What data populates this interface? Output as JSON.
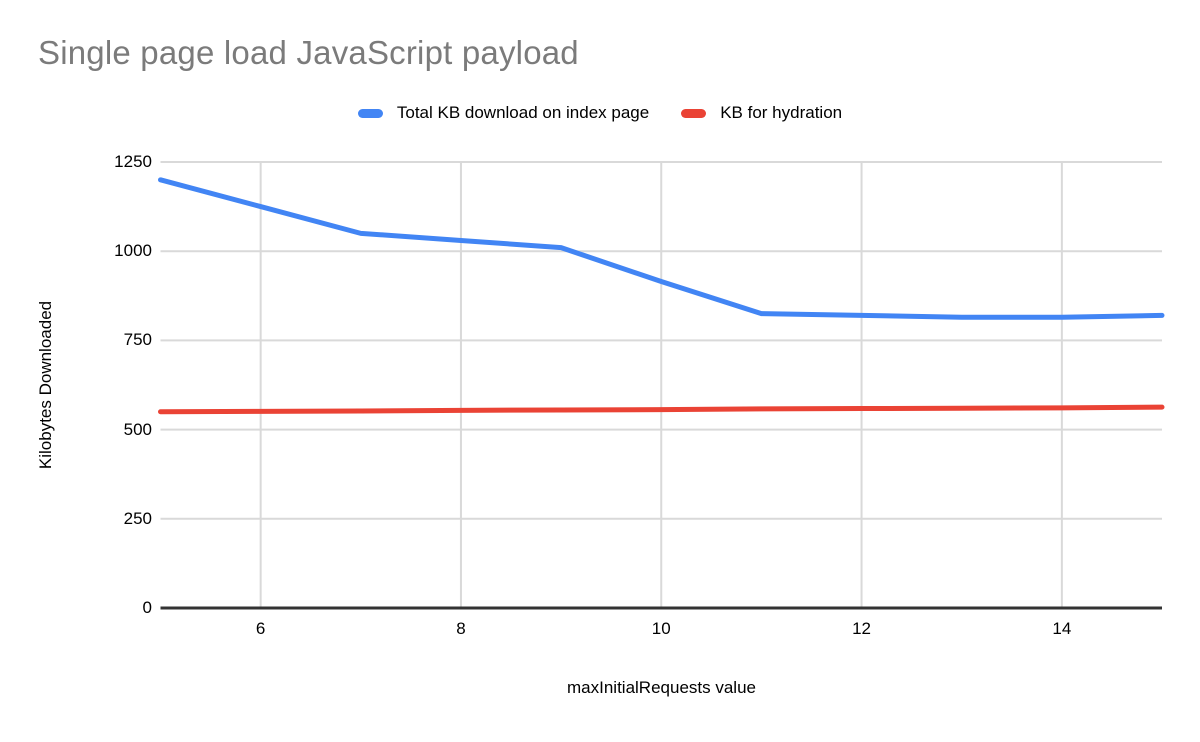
{
  "title": "Single page load JavaScript payload",
  "colors": {
    "background": "#ffffff",
    "title_text": "#7b7b7b",
    "label_text": "#000000",
    "grid": "#d9d9d9",
    "axis_line": "#333333",
    "series_blue": "#4285F4",
    "series_red": "#EA4335"
  },
  "legend": {
    "items": [
      {
        "label": "Total KB download on index page",
        "color": "#4285F4"
      },
      {
        "label": "KB for hydration",
        "color": "#EA4335"
      }
    ]
  },
  "chart_data": {
    "type": "line",
    "title": "Single page load JavaScript payload",
    "xlabel": "maxInitialRequests value",
    "ylabel": "Kilobytes Downloaded",
    "x": [
      5,
      6,
      7,
      8,
      9,
      10,
      11,
      12,
      13,
      14,
      15
    ],
    "series": [
      {
        "name": "Total KB download on index page",
        "color": "#4285F4",
        "values": [
          1200,
          1125,
          1050,
          1030,
          1010,
          915,
          825,
          820,
          815,
          815,
          820
        ]
      },
      {
        "name": "KB for hydration",
        "color": "#EA4335",
        "values": [
          550,
          551,
          552,
          554,
          555,
          556,
          558,
          559,
          560,
          561,
          563
        ]
      }
    ],
    "xlim": [
      5,
      15
    ],
    "ylim": [
      0,
      1250
    ],
    "xticks": [
      6,
      8,
      10,
      12,
      14
    ],
    "yticks": [
      0,
      250,
      500,
      750,
      1000,
      1250
    ],
    "grid": true,
    "legend_position": "top"
  }
}
